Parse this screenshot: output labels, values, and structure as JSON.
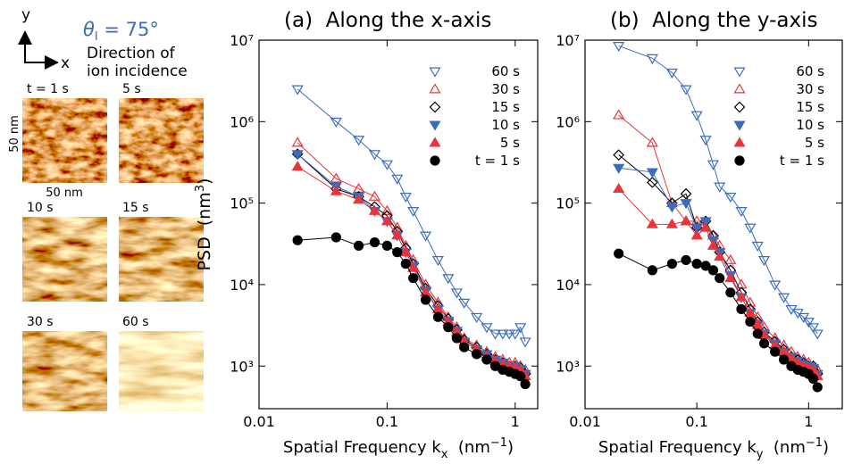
{
  "images_panel": {
    "axis_y": "y",
    "axis_x": "x",
    "angle": [
      "θ",
      "I",
      " = 75°"
    ],
    "note": [
      "Direction of",
      "ion incidence"
    ],
    "scale_y": "50 nm",
    "scale_x": "50 nm",
    "images": [
      {
        "label": "t = 1 s"
      },
      {
        "label": "5 s"
      },
      {
        "label": "10 s"
      },
      {
        "label": "15 s"
      },
      {
        "label": "30 s"
      },
      {
        "label": "60 s"
      }
    ]
  },
  "chart_data": [
    {
      "type": "line",
      "title": "(a)  Along the x-axis",
      "log_x": true,
      "log_y": true,
      "legend": "upper right",
      "ylabel": [
        "PSD  (nm",
        "3",
        ")"
      ],
      "xlabel": [
        "Spatial Frequency k",
        "x",
        "  (nm",
        "−1",
        ")"
      ],
      "xlim": [
        0.01,
        1.5
      ],
      "xticks": [
        0.01,
        0.1,
        1
      ],
      "ylim": [
        300,
        10000000
      ],
      "yticks": [
        {
          "value": 1000,
          "label": "10³"
        },
        {
          "value": 10000,
          "label": "10⁴"
        },
        {
          "value": 100000,
          "label": "10⁵"
        },
        {
          "value": 1000000,
          "label": "10⁶"
        },
        {
          "value": 10000000,
          "label": "10⁷"
        }
      ],
      "x": [
        0.02,
        0.04,
        0.06,
        0.08,
        0.1,
        0.12,
        0.14,
        0.16,
        0.2,
        0.25,
        0.3,
        0.35,
        0.4,
        0.5,
        0.6,
        0.7,
        0.8,
        0.9,
        1.0,
        1.1,
        1.2
      ],
      "series": [
        {
          "name": "60 s",
          "color": "#3b6bbf",
          "marker": "tri_down",
          "filled": false,
          "values": [
            2500000,
            1000000,
            600000,
            400000,
            300000,
            200000,
            120000,
            80000,
            40000,
            20000,
            12000,
            8000,
            6000,
            4000,
            3000,
            2500,
            2500,
            2500,
            2500,
            3000,
            2000
          ]
        },
        {
          "name": "30 s",
          "color": "#e8343a",
          "marker": "tri_up",
          "filled": false,
          "values": [
            550000,
            200000,
            150000,
            120000,
            80000,
            50000,
            30000,
            20000,
            10000,
            6000,
            4000,
            3000,
            2200,
            1800,
            1500,
            1300,
            1200,
            1100,
            1100,
            1000,
            900
          ]
        },
        {
          "name": "15 s",
          "color": "#000000",
          "marker": "diamond",
          "filled": false,
          "values": [
            400000,
            150000,
            120000,
            90000,
            70000,
            45000,
            28000,
            18000,
            9000,
            5500,
            3800,
            2800,
            2100,
            1700,
            1400,
            1200,
            1100,
            1000,
            1000,
            950,
            800
          ]
        },
        {
          "name": "10 s",
          "color": "#3b6bbf",
          "marker": "tri_down",
          "filled": true,
          "values": [
            400000,
            160000,
            120000,
            80000,
            60000,
            40000,
            25000,
            17000,
            8500,
            5000,
            3600,
            2700,
            2000,
            1600,
            1400,
            1200,
            1100,
            1000,
            1000,
            900,
            800
          ]
        },
        {
          "name": "5 s",
          "color": "#e8343a",
          "marker": "tri_up",
          "filled": true,
          "values": [
            280000,
            140000,
            110000,
            80000,
            60000,
            40000,
            25000,
            16000,
            8000,
            5000,
            3500,
            2600,
            2000,
            1600,
            1300,
            1150,
            1050,
            1000,
            950,
            900,
            750
          ]
        },
        {
          "name": "t = 1 s",
          "color": "#000000",
          "marker": "circle",
          "filled": true,
          "values": [
            35000,
            38000,
            30000,
            33000,
            30000,
            25000,
            18000,
            12000,
            6500,
            4000,
            3000,
            2200,
            1700,
            1400,
            1200,
            1000,
            900,
            850,
            800,
            750,
            600
          ]
        }
      ]
    },
    {
      "type": "line",
      "title": "(b)  Along the y-axis",
      "log_x": true,
      "log_y": true,
      "legend": "upper right",
      "xlabel": [
        "Spatial Frequency k",
        "y",
        "  (nm",
        "−1",
        ")"
      ],
      "xlim": [
        0.01,
        2
      ],
      "xticks": [
        0.01,
        0.1,
        1
      ],
      "ylim": [
        300,
        10000000
      ],
      "yticks": [
        {
          "value": 1000,
          "label": "10³"
        },
        {
          "value": 10000,
          "label": "10⁴"
        },
        {
          "value": 100000,
          "label": "10⁵"
        },
        {
          "value": 1000000,
          "label": "10⁶"
        },
        {
          "value": 10000000,
          "label": "10⁷"
        }
      ],
      "x": [
        0.02,
        0.04,
        0.06,
        0.08,
        0.1,
        0.12,
        0.14,
        0.16,
        0.2,
        0.25,
        0.3,
        0.35,
        0.4,
        0.5,
        0.6,
        0.7,
        0.8,
        0.9,
        1.0,
        1.1,
        1.2
      ],
      "series": [
        {
          "name": "60 s",
          "color": "#3b6bbf",
          "marker": "tri_down",
          "filled": false,
          "values": [
            8500000,
            6000000,
            4000000,
            2500000,
            1200000,
            600000,
            300000,
            160000,
            120000,
            80000,
            50000,
            30000,
            20000,
            10000,
            7000,
            5000,
            4500,
            4000,
            3500,
            3000,
            2500
          ]
        },
        {
          "name": "30 s",
          "color": "#e8343a",
          "marker": "tri_up",
          "filled": false,
          "values": [
            1200000,
            550000,
            100000,
            60000,
            60000,
            50000,
            40000,
            30000,
            20000,
            10000,
            6000,
            4000,
            3000,
            2200,
            1800,
            1500,
            1300,
            1200,
            1100,
            1000,
            900
          ]
        },
        {
          "name": "15 s",
          "color": "#000000",
          "marker": "diamond",
          "filled": false,
          "values": [
            390000,
            180000,
            100000,
            130000,
            50000,
            60000,
            40000,
            25000,
            15000,
            8000,
            5000,
            3500,
            2600,
            2000,
            1600,
            1300,
            1200,
            1100,
            1000,
            1000,
            800
          ]
        },
        {
          "name": "10 s",
          "color": "#3b6bbf",
          "marker": "tri_down",
          "filled": true,
          "values": [
            270000,
            240000,
            90000,
            100000,
            50000,
            60000,
            35000,
            25000,
            13000,
            7000,
            4500,
            3200,
            2500,
            1900,
            1500,
            1300,
            1150,
            1050,
            1000,
            950,
            800
          ]
        },
        {
          "name": "5 s",
          "color": "#e8343a",
          "marker": "tri_up",
          "filled": true,
          "values": [
            150000,
            55000,
            55000,
            60000,
            40000,
            50000,
            30000,
            22000,
            12000,
            7000,
            4500,
            3200,
            2400,
            1800,
            1500,
            1250,
            1100,
            1000,
            950,
            900,
            750
          ]
        },
        {
          "name": "t = 1 s",
          "color": "#000000",
          "marker": "circle",
          "filled": true,
          "values": [
            24000,
            15000,
            18000,
            20000,
            18000,
            17000,
            15000,
            12000,
            8000,
            5000,
            3500,
            2500,
            1900,
            1500,
            1200,
            1000,
            900,
            850,
            800,
            700,
            550
          ]
        }
      ]
    }
  ]
}
